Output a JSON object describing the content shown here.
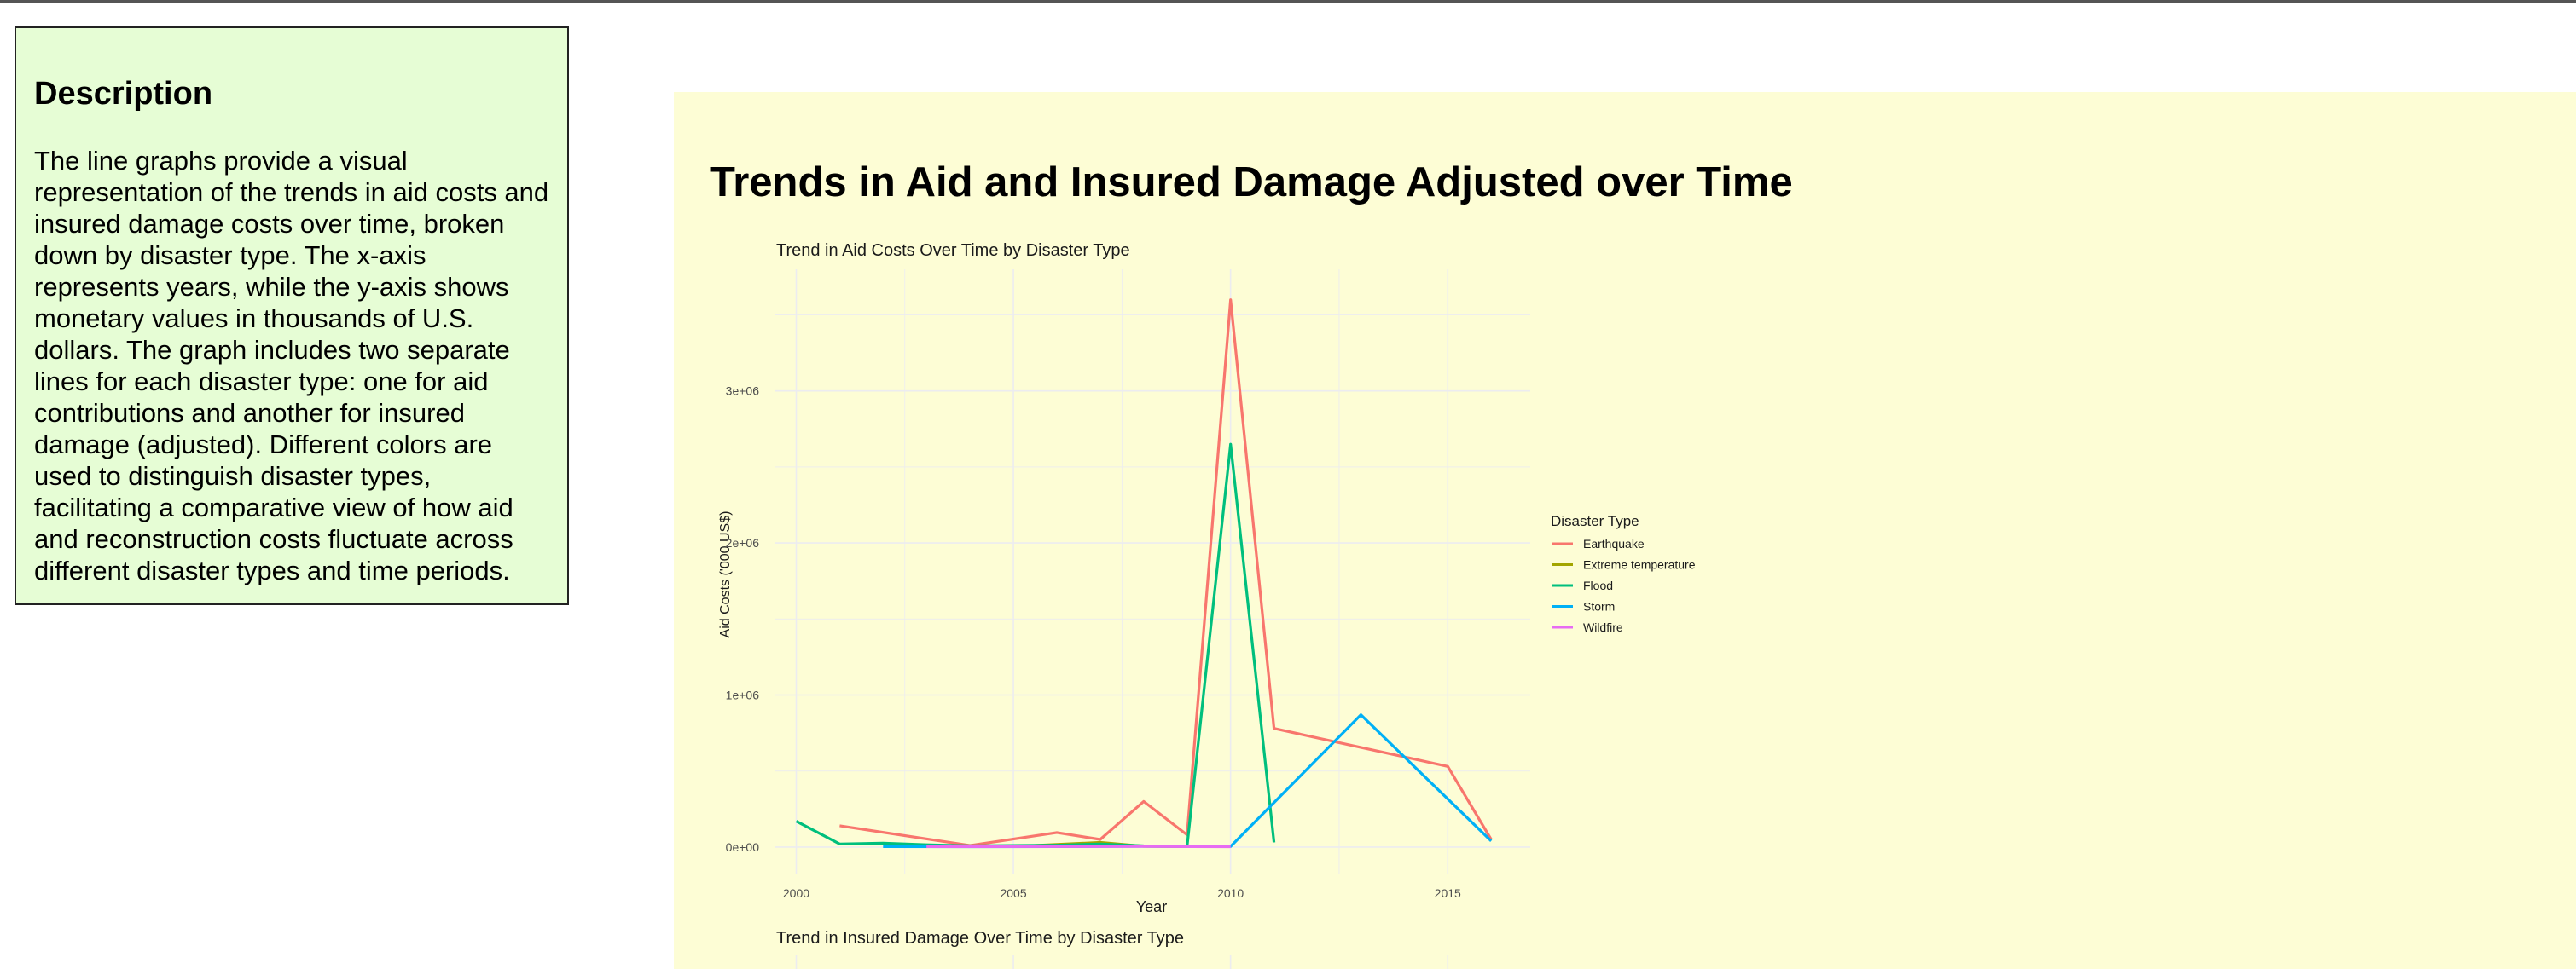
{
  "description": {
    "title": "Description",
    "text": "The line graphs provide a visual representation of the trends in aid costs and insured damage costs over time, broken down by disaster type. The x-axis represents years, while the y-axis shows monetary values in thousands of U.S. dollars. The graph includes two separate lines for each disaster type: one for aid contributions and another for insured damage (adjusted). Different colors are used to distinguish disaster types, facilitating a comparative view of how aid and reconstruction costs fluctuate across different disaster types and time periods."
  },
  "page_title": "Trends in Aid and Insured Damage Adjusted over Time",
  "colors": {
    "panel_bg": "#fdfdd5",
    "desc_bg": "#e6fdd5",
    "grid": "#ececf0"
  },
  "chart_data": [
    {
      "type": "line",
      "title": "Trend in Aid Costs Over Time by Disaster Type",
      "xlabel": "Year",
      "ylabel": "Aid Costs ('000 US$)",
      "xlim": [
        1999.5,
        2016.9
      ],
      "ylim": [
        -180000,
        3800000
      ],
      "x_ticks": [
        2000,
        2005,
        2010,
        2015
      ],
      "x_tick_labels": [
        "2000",
        "2005",
        "2010",
        "2015"
      ],
      "y_ticks": [
        0,
        1000000,
        2000000,
        3000000
      ],
      "y_tick_labels": [
        "0e+00",
        "1e+06",
        "2e+06",
        "3e+06"
      ],
      "grid": true,
      "legend_title": "Disaster Type",
      "legend_position": "right",
      "series": [
        {
          "name": "Earthquake",
          "color": "#F8766D",
          "points": [
            [
              2001,
              140000
            ],
            [
              2004,
              10000
            ],
            [
              2006,
              95000
            ],
            [
              2007,
              50000
            ],
            [
              2008,
              300000
            ],
            [
              2009,
              80000
            ],
            [
              2010,
              3600000
            ],
            [
              2011,
              780000
            ],
            [
              2015,
              530000
            ],
            [
              2016,
              50000
            ]
          ]
        },
        {
          "name": "Extreme temperature",
          "color": "#A3A500",
          "points": [
            [
              2003,
              5000
            ],
            [
              2005,
              4000
            ],
            [
              2007,
              30000
            ],
            [
              2008,
              5000
            ],
            [
              2009,
              3000
            ]
          ]
        },
        {
          "name": "Flood",
          "color": "#00BF7D",
          "points": [
            [
              2000,
              170000
            ],
            [
              2001,
              20000
            ],
            [
              2002,
              25000
            ],
            [
              2003,
              15000
            ],
            [
              2004,
              8000
            ],
            [
              2005,
              10000
            ],
            [
              2006,
              12000
            ],
            [
              2007,
              20000
            ],
            [
              2008,
              8000
            ],
            [
              2009,
              5000
            ],
            [
              2010,
              2650000
            ],
            [
              2011,
              30000
            ]
          ]
        },
        {
          "name": "Storm",
          "color": "#00B0F6",
          "points": [
            [
              2002,
              3000
            ],
            [
              2004,
              2000
            ],
            [
              2006,
              3000
            ],
            [
              2008,
              5000
            ],
            [
              2010,
              4000
            ],
            [
              2013,
              870000
            ],
            [
              2016,
              40000
            ]
          ]
        },
        {
          "name": "Wildfire",
          "color": "#E76BF3",
          "points": [
            [
              2003,
              3000
            ],
            [
              2008,
              4000
            ],
            [
              2010,
              2000
            ]
          ]
        }
      ]
    },
    {
      "type": "line",
      "title": "Trend in Insured Damage Over Time by Disaster Type",
      "series": []
    }
  ]
}
